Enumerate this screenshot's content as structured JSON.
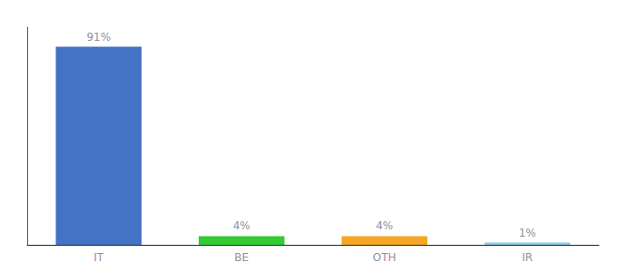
{
  "chart_data": {
    "type": "bar",
    "categories": [
      "IT",
      "BE",
      "OTH",
      "IR"
    ],
    "values": [
      91,
      4,
      4,
      1
    ],
    "value_labels": [
      "91%",
      "4%",
      "4%",
      "1%"
    ],
    "colors": [
      "#4472c4",
      "#33cc33",
      "#f5a623",
      "#87ceeb"
    ],
    "ylim": [
      0,
      100
    ],
    "grid": false,
    "data_labels": true,
    "tick_labels": "x"
  }
}
